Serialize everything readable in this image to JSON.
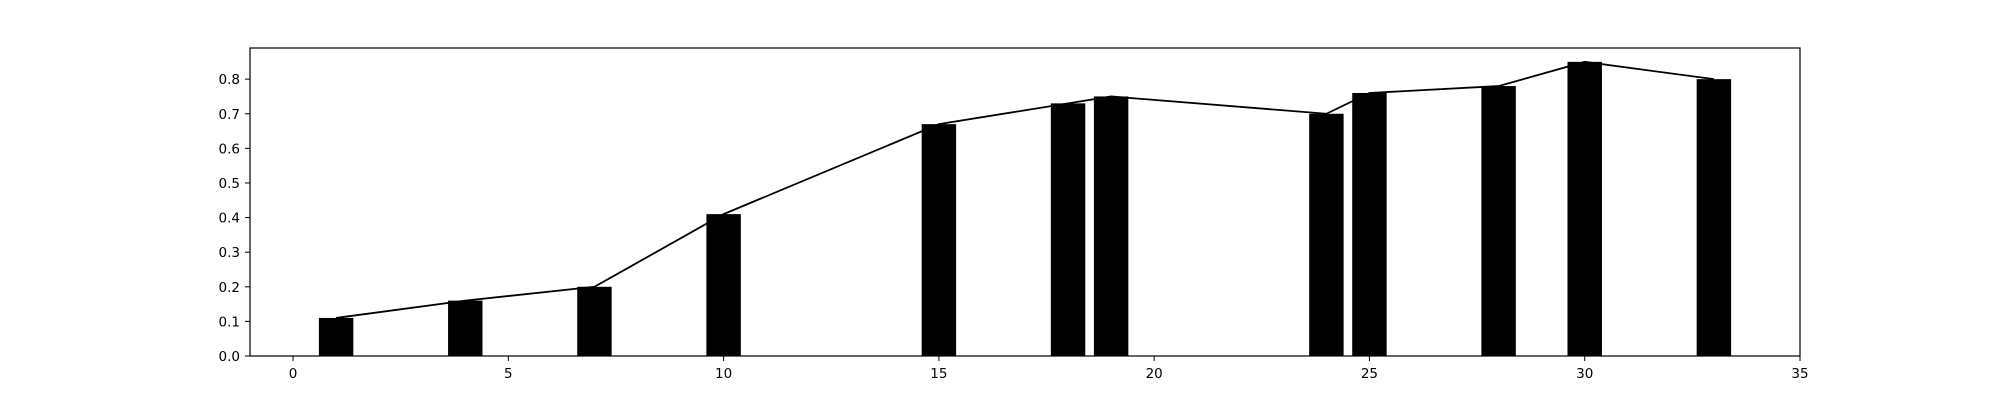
{
  "chart_data": {
    "type": "bar",
    "x": [
      1,
      4,
      7,
      10,
      15,
      18,
      19,
      24,
      25,
      28,
      30,
      33
    ],
    "values": [
      0.11,
      0.16,
      0.2,
      0.41,
      0.67,
      0.73,
      0.75,
      0.7,
      0.76,
      0.78,
      0.85,
      0.8
    ],
    "line_overlay": true,
    "title": "",
    "xlabel": "",
    "ylabel": "",
    "xlim": [
      -1,
      35
    ],
    "ylim": [
      0,
      0.89
    ],
    "xticks": [
      0,
      5,
      10,
      15,
      20,
      25,
      30,
      35
    ],
    "yticks": [
      0.0,
      0.1,
      0.2,
      0.3,
      0.4,
      0.5,
      0.6,
      0.7,
      0.8
    ],
    "colors": {
      "bars": "#000000",
      "line": "#000000",
      "axes": "#000000"
    },
    "grid": false,
    "legend": "none"
  }
}
